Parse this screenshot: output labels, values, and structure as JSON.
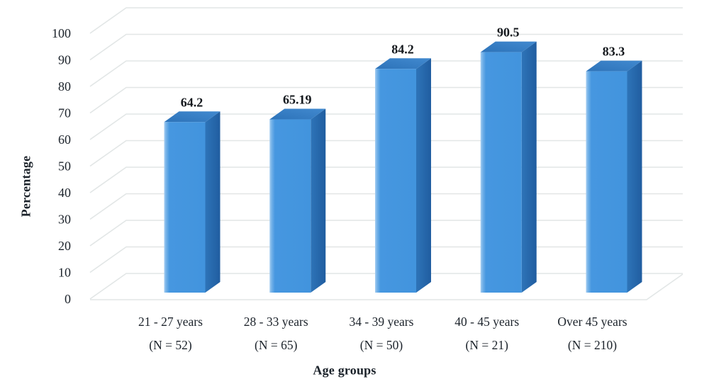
{
  "chart_data": {
    "type": "bar",
    "style": "3d-column",
    "xlabel": "Age groups",
    "ylabel": "Percentage",
    "categories": [
      "21 - 27 years",
      "28 - 33 years",
      "34 - 39 years",
      "40 - 45 years",
      "Over 45 years"
    ],
    "category_sublabels": [
      "(N = 52)",
      "(N = 65)",
      "(N = 50)",
      "(N = 21)",
      "(N = 210)"
    ],
    "values": [
      64.2,
      65.19,
      84.2,
      90.5,
      83.3
    ],
    "value_labels": [
      "64.2",
      "65.19",
      "84.2",
      "90.5",
      "83.3"
    ],
    "ylim": [
      0,
      100
    ],
    "ytick_step": 10,
    "ytick_labels": [
      "0",
      "10",
      "20",
      "30",
      "40",
      "50",
      "60",
      "70",
      "80",
      "90",
      "100"
    ],
    "grid": true,
    "legend": "none",
    "colors": {
      "bar_front": "#4697e0",
      "bar_front_highlight": "#a6cef2",
      "bar_side": "#2e74b8",
      "bar_side_dark": "#205da0",
      "bar_top": "#2d73b9",
      "bar_top_light": "#4189cf",
      "gridline": "#e2e6e6",
      "text": "#1c232b"
    }
  }
}
